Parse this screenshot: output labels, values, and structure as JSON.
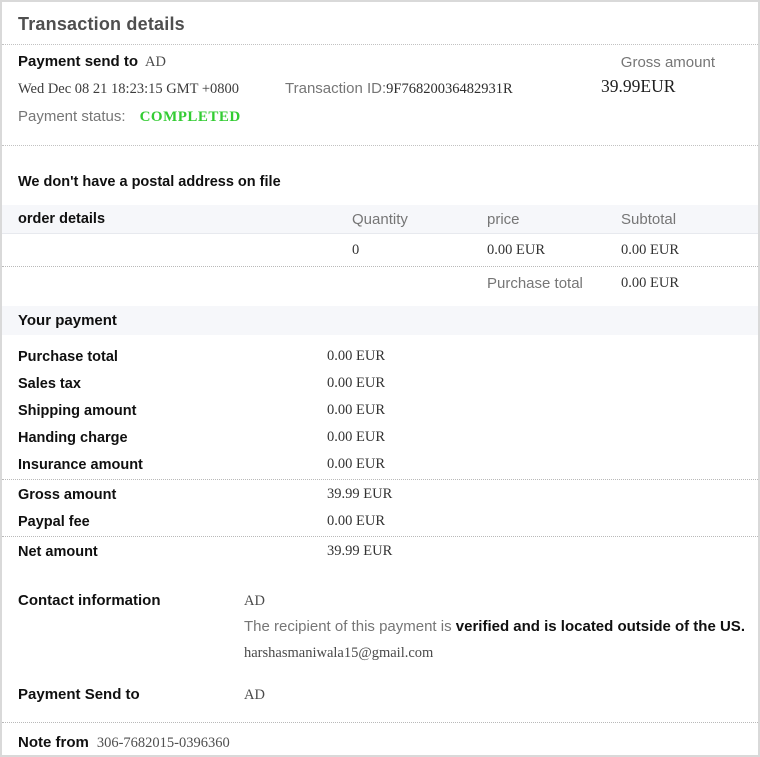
{
  "page": {
    "title": "Transaction details"
  },
  "colors": {
    "status_green": "#33cc33",
    "band_bg": "#f6f7fa",
    "border_gray": "#d9d9d9"
  },
  "summary": {
    "send_to_label": "Payment send to",
    "send_to_value": "AD",
    "gross_label": "Gross amount",
    "gross_value": "39.99EUR",
    "date": "Wed Dec 08 21 18:23:15 GMT +0800",
    "transaction_id_label": "Transaction ID:",
    "transaction_id_value": "9F76820036482931R",
    "status_label": "Payment status:",
    "status_value": "COMPLETED"
  },
  "postal_notice": "We don't have a postal address on file",
  "order_table": {
    "headers": {
      "details": "order details",
      "quantity": "Quantity",
      "price": "price",
      "subtotal": "Subtotal"
    },
    "row": {
      "quantity": "0",
      "price": "0.00 EUR",
      "subtotal": "0.00 EUR"
    },
    "purchase_total_label": "Purchase total",
    "purchase_total_value": "0.00 EUR"
  },
  "your_payment": {
    "title": "Your payment",
    "rows": [
      {
        "label": "Purchase total",
        "value": "0.00 EUR"
      },
      {
        "label": "Sales tax",
        "value": "0.00 EUR"
      },
      {
        "label": "Shipping amount",
        "value": "0.00 EUR"
      },
      {
        "label": "Handing charge",
        "value": "0.00 EUR"
      },
      {
        "label": "Insurance amount",
        "value": "0.00 EUR"
      },
      {
        "label": "Gross amount",
        "value": "39.99 EUR"
      },
      {
        "label": "Paypal fee",
        "value": "0.00 EUR"
      },
      {
        "label": "Net amount",
        "value": "39.99 EUR"
      }
    ]
  },
  "contact": {
    "label": "Contact information",
    "name": "AD",
    "recipient_note_plain": "The recipient of this payment is ",
    "recipient_note_bold": "verified and is located outside of the US.",
    "email": "harshasmaniwala15@gmail.com"
  },
  "payment_send_to": {
    "label": "Payment Send to",
    "value": "AD"
  },
  "note": {
    "label": "Note from",
    "value": "306-7682015-0396360"
  }
}
